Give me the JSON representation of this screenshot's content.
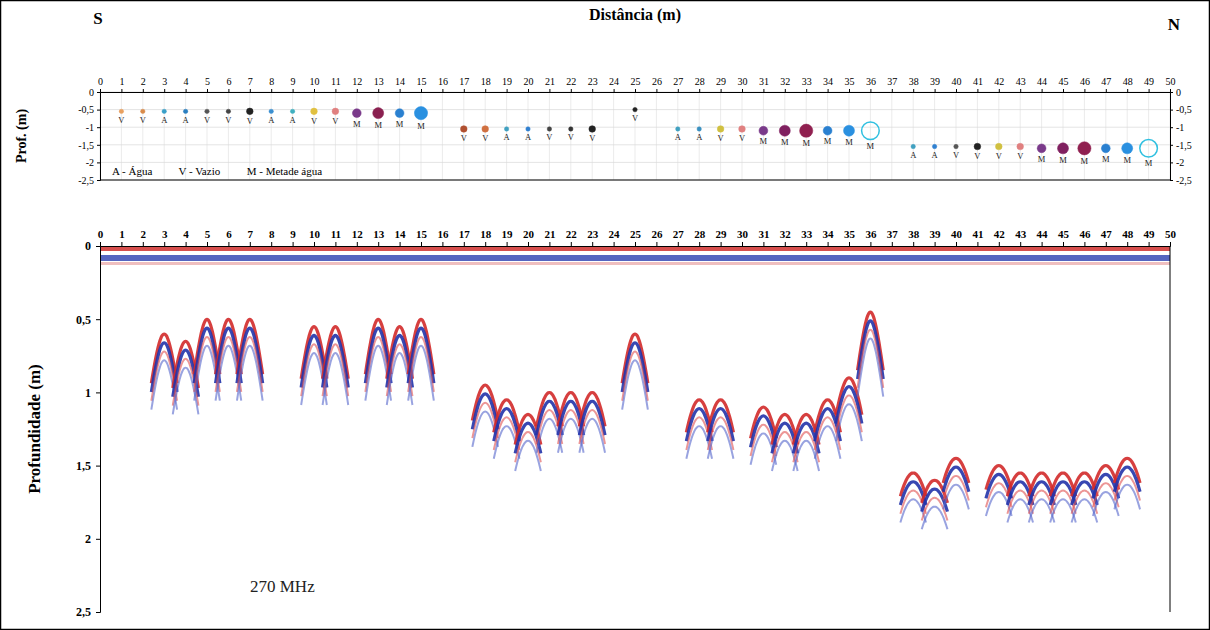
{
  "chart_data": [
    {
      "type": "scatter",
      "title": "Distância (m)",
      "ylabel": "Prof. (m)",
      "side_labels": [
        "S",
        "N"
      ],
      "annotations": [
        "A - Água",
        "V - Vazio",
        "M - Metade água"
      ],
      "xlim": [
        0,
        50
      ],
      "xticks": [
        0,
        1,
        2,
        3,
        4,
        5,
        6,
        7,
        8,
        9,
        10,
        11,
        12,
        13,
        14,
        15,
        16,
        17,
        18,
        19,
        20,
        21,
        22,
        23,
        24,
        25,
        26,
        27,
        28,
        29,
        30,
        31,
        32,
        33,
        34,
        35,
        36,
        37,
        38,
        39,
        40,
        41,
        42,
        43,
        44,
        45,
        46,
        47,
        48,
        49,
        50
      ],
      "ylim": [
        0,
        -2.5
      ],
      "yticks": [
        0,
        {
          "value": -0.5,
          "label": "-0,5"
        },
        -1,
        {
          "value": -1.5,
          "label": "-1,5"
        },
        -2,
        {
          "value": -2.5,
          "label": "-2,5"
        }
      ],
      "grid": true,
      "series": [
        {
          "marker": "circle",
          "x": [
            1,
            2,
            3,
            4,
            5,
            6,
            7,
            8,
            9,
            10,
            11,
            12,
            13,
            14,
            15,
            17,
            18,
            19,
            20,
            21,
            22,
            23,
            25,
            27,
            28,
            29,
            30,
            31,
            32,
            33,
            34,
            35,
            38,
            39,
            40,
            41,
            42,
            43,
            44,
            45,
            46,
            47,
            48
          ],
          "values": [
            -0.55,
            -0.55,
            -0.55,
            -0.55,
            -0.55,
            -0.55,
            -0.55,
            -0.55,
            -0.55,
            -0.55,
            -0.55,
            -0.6,
            -0.6,
            -0.6,
            -0.6,
            -1.05,
            -1.05,
            -1.05,
            -1.05,
            -1.05,
            -1.05,
            -1.05,
            -0.5,
            -1.05,
            -1.05,
            -1.05,
            -1.05,
            -1.1,
            -1.1,
            -1.1,
            -1.1,
            -1.1,
            -1.55,
            -1.55,
            -1.55,
            -1.55,
            -1.55,
            -1.55,
            -1.6,
            -1.6,
            -1.6,
            -1.6,
            -1.6
          ],
          "sizes": [
            1,
            1,
            1,
            1,
            1,
            1,
            1.5,
            1,
            1,
            1.5,
            1.5,
            2,
            2.5,
            2,
            3,
            1.5,
            1.5,
            1,
            1,
            1,
            1,
            1.5,
            1,
            1,
            1,
            1.5,
            1.5,
            2,
            2.5,
            3,
            2,
            2.5,
            1,
            1,
            1,
            1.5,
            1.5,
            1.5,
            2,
            2.5,
            3,
            2,
            2.5
          ],
          "colors": [
            "#e8a060",
            "#d98b4a",
            "#3aa0c8",
            "#2a7fc0",
            "#555555",
            "#444444",
            "#222222",
            "#3a8fd0",
            "#40b0c0",
            "#e0c040",
            "#e08080",
            "#7a3a8a",
            "#8a2050",
            "#2a80d0",
            "#2a90e0",
            "#b05030",
            "#d07040",
            "#40a0c0",
            "#3080d0",
            "#444444",
            "#333333",
            "#222222",
            "#222222",
            "#40a0c0",
            "#3a90c0",
            "#d0c040",
            "#e08080",
            "#7a3a8a",
            "#802060",
            "#902050",
            "#2a80d0",
            "#2a90e0",
            "#40a0c0",
            "#3080d0",
            "#555555",
            "#222222",
            "#d0c040",
            "#e08080",
            "#7a3a8a",
            "#802060",
            "#902050",
            "#2a80d0",
            "#2a90e0"
          ],
          "labels": [
            "V",
            "V",
            "A",
            "A",
            "V",
            "V",
            "V",
            "A",
            "A",
            "V",
            "V",
            "M",
            "M",
            "M",
            "M",
            "V",
            "V",
            "A",
            "A",
            "V",
            "V",
            "V",
            "V",
            "A",
            "A",
            "V",
            "V",
            "M",
            "M",
            "M",
            "M",
            "M",
            "A",
            "A",
            "V",
            "V",
            "V",
            "V",
            "M",
            "M",
            "M",
            "M",
            "M"
          ]
        },
        {
          "marker": "circle-open",
          "x": [
            36,
            49
          ],
          "values": [
            -1.1,
            -1.6
          ],
          "sizes": [
            4,
            4
          ],
          "colors": [
            "#30c0e0",
            "#30c0e0"
          ],
          "labels": [
            "M",
            "M"
          ]
        }
      ]
    },
    {
      "type": "radargram",
      "ylabel": "Profundidade (m)",
      "annotations": [
        "270 MHz"
      ],
      "xlim": [
        0,
        50
      ],
      "xticks": [
        0,
        1,
        2,
        3,
        4,
        5,
        6,
        7,
        8,
        9,
        10,
        11,
        12,
        13,
        14,
        15,
        16,
        17,
        18,
        19,
        20,
        21,
        22,
        23,
        24,
        25,
        26,
        27,
        28,
        29,
        30,
        31,
        32,
        33,
        34,
        35,
        36,
        37,
        38,
        39,
        40,
        41,
        42,
        43,
        44,
        45,
        46,
        47,
        48,
        49,
        50
      ],
      "ylim": [
        0,
        2.5
      ],
      "yticks": [
        0,
        {
          "value": 0.5,
          "label": "0,5"
        },
        1,
        {
          "value": 1.5,
          "label": "1,5"
        },
        2,
        {
          "value": 2.5,
          "label": "2,5"
        }
      ],
      "x": [
        3,
        4,
        5,
        6,
        7,
        10,
        11,
        13,
        14,
        15,
        18,
        19,
        20,
        21,
        22,
        23,
        25,
        28,
        29,
        31,
        32,
        33,
        34,
        35,
        36,
        38,
        39,
        40,
        42,
        43,
        44,
        45,
        46,
        47,
        48
      ],
      "values": [
        0.6,
        0.65,
        0.5,
        0.5,
        0.5,
        0.55,
        0.55,
        0.5,
        0.55,
        0.5,
        0.95,
        1.05,
        1.15,
        1.0,
        1.0,
        1.0,
        0.6,
        1.05,
        1.05,
        1.1,
        1.15,
        1.15,
        1.05,
        0.9,
        0.45,
        1.55,
        1.6,
        1.45,
        1.5,
        1.55,
        1.55,
        1.55,
        1.55,
        1.5,
        1.45
      ]
    }
  ]
}
